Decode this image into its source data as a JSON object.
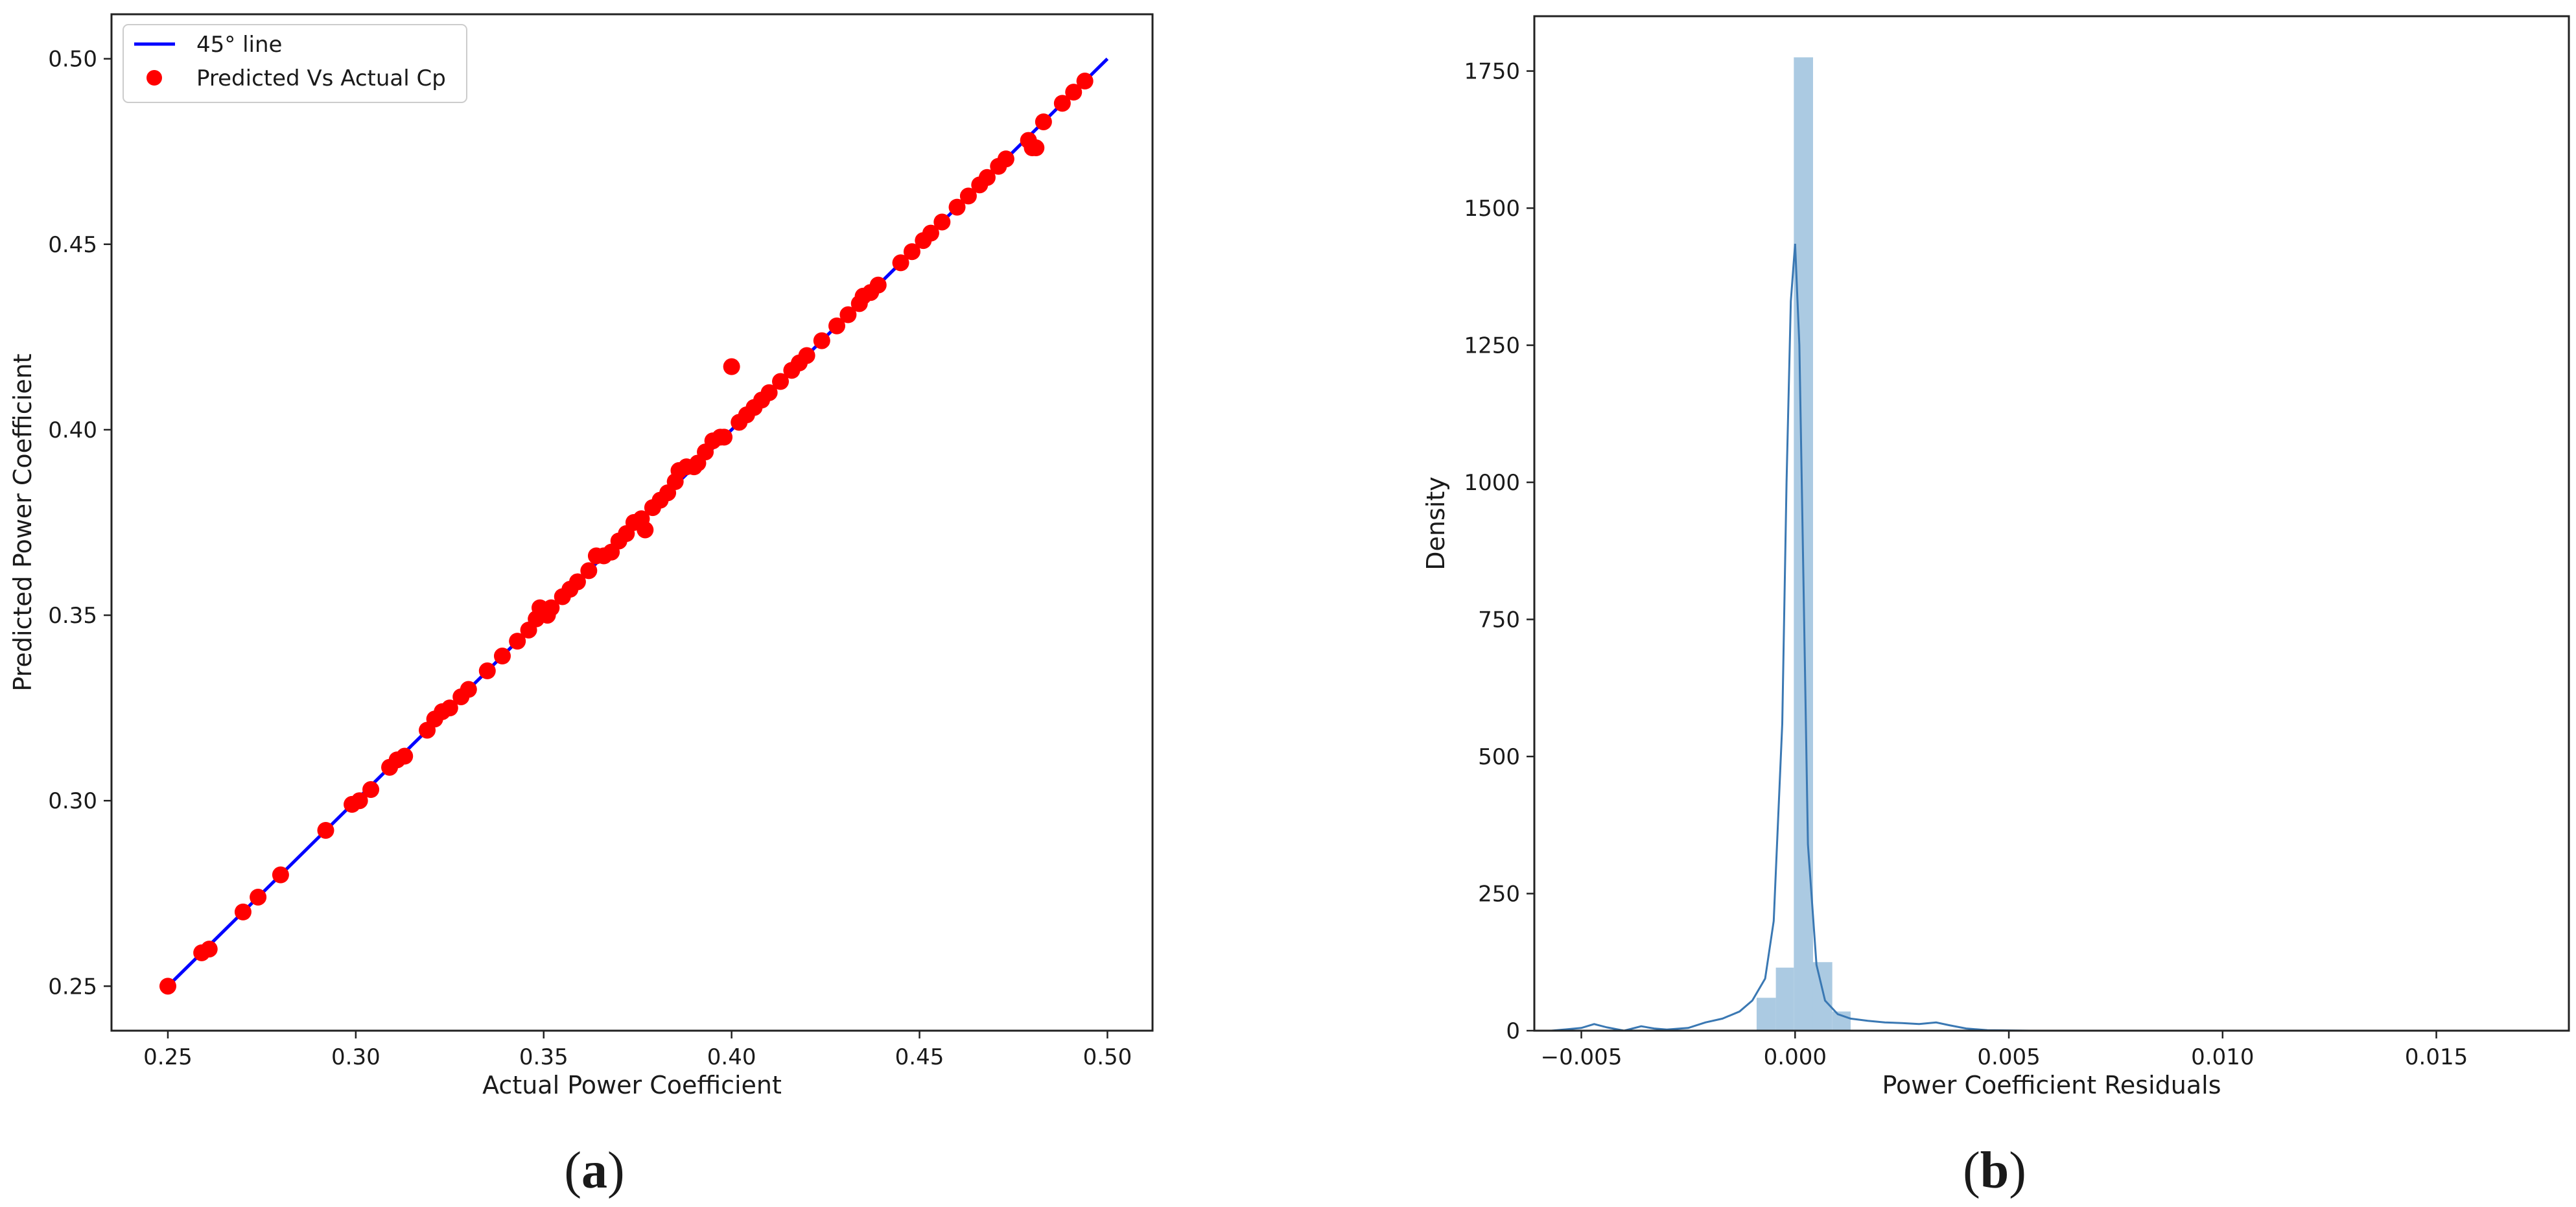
{
  "panels": {
    "a": {
      "label_open": "(",
      "letter": "a",
      "label_close": ")"
    },
    "b": {
      "label_open": "(",
      "letter": "b",
      "label_close": ")"
    }
  },
  "chart_data": [
    {
      "type": "scatter",
      "xlabel": "Actual Power Coefficient",
      "ylabel": "Predicted Power Coefficient",
      "xlim": [
        0.235,
        0.512
      ],
      "ylim": [
        0.238,
        0.512
      ],
      "xticks": [
        "0.25",
        "0.30",
        "0.35",
        "0.40",
        "0.45",
        "0.50"
      ],
      "yticks": [
        "0.25",
        "0.30",
        "0.35",
        "0.40",
        "0.45",
        "0.50"
      ],
      "legend_position": "top-left",
      "colors": {
        "line": "#0000ff",
        "points": "#ff0000"
      },
      "series": [
        {
          "name": "45° line",
          "kind": "line",
          "x": [
            0.25,
            0.5
          ],
          "y": [
            0.25,
            0.5
          ]
        },
        {
          "name": "Predicted Vs Actual Cp",
          "kind": "scatter",
          "x": [
            0.25,
            0.259,
            0.261,
            0.27,
            0.274,
            0.28,
            0.292,
            0.299,
            0.301,
            0.304,
            0.309,
            0.311,
            0.313,
            0.319,
            0.321,
            0.323,
            0.325,
            0.328,
            0.33,
            0.335,
            0.339,
            0.343,
            0.346,
            0.348,
            0.349,
            0.351,
            0.352,
            0.355,
            0.357,
            0.359,
            0.362,
            0.364,
            0.366,
            0.368,
            0.37,
            0.372,
            0.374,
            0.376,
            0.377,
            0.379,
            0.381,
            0.383,
            0.385,
            0.386,
            0.388,
            0.39,
            0.391,
            0.393,
            0.395,
            0.397,
            0.398,
            0.4,
            0.402,
            0.404,
            0.406,
            0.408,
            0.41,
            0.413,
            0.416,
            0.418,
            0.42,
            0.424,
            0.428,
            0.431,
            0.434,
            0.435,
            0.437,
            0.439,
            0.445,
            0.448,
            0.451,
            0.453,
            0.456,
            0.46,
            0.463,
            0.466,
            0.468,
            0.471,
            0.473,
            0.479,
            0.48,
            0.481,
            0.483,
            0.488,
            0.491,
            0.494
          ],
          "y": [
            0.25,
            0.259,
            0.26,
            0.27,
            0.274,
            0.28,
            0.292,
            0.299,
            0.3,
            0.303,
            0.309,
            0.311,
            0.312,
            0.319,
            0.322,
            0.324,
            0.325,
            0.328,
            0.33,
            0.335,
            0.339,
            0.343,
            0.346,
            0.349,
            0.352,
            0.35,
            0.352,
            0.355,
            0.357,
            0.359,
            0.362,
            0.366,
            0.366,
            0.367,
            0.37,
            0.372,
            0.375,
            0.376,
            0.373,
            0.379,
            0.381,
            0.383,
            0.386,
            0.389,
            0.39,
            0.39,
            0.391,
            0.394,
            0.397,
            0.398,
            0.398,
            0.417,
            0.402,
            0.404,
            0.406,
            0.408,
            0.41,
            0.413,
            0.416,
            0.418,
            0.42,
            0.424,
            0.428,
            0.431,
            0.434,
            0.436,
            0.437,
            0.439,
            0.445,
            0.448,
            0.451,
            0.453,
            0.456,
            0.46,
            0.463,
            0.466,
            0.468,
            0.471,
            0.473,
            0.478,
            0.476,
            0.476,
            0.483,
            0.488,
            0.491,
            0.494
          ]
        }
      ]
    },
    {
      "type": "histogram",
      "xlabel": "Power Coefficient Residuals",
      "ylabel": "Density",
      "xlim": [
        -0.0061,
        0.0181
      ],
      "ylim": [
        0,
        1850
      ],
      "xticks": [
        "−0.005",
        "0.000",
        "0.005",
        "0.010",
        "0.015"
      ],
      "yticks": [
        "0",
        "250",
        "500",
        "750",
        "1000",
        "1250",
        "1500",
        "1750"
      ],
      "colors": {
        "bars": "#a6c7e0",
        "kde": "#3a78b3"
      },
      "bins": [
        {
          "x0": -0.0009,
          "x1": -0.00045,
          "value": 60
        },
        {
          "x0": -0.00045,
          "x1": -3e-05,
          "value": 115
        },
        {
          "x0": -3e-05,
          "x1": 0.00042,
          "value": 1775
        },
        {
          "x0": 0.00042,
          "x1": 0.00087,
          "value": 125
        },
        {
          "x0": 0.00087,
          "x1": 0.0013,
          "value": 35
        }
      ],
      "kde": {
        "x": [
          -0.0057,
          -0.005,
          -0.0047,
          -0.0044,
          -0.004,
          -0.0036,
          -0.0033,
          -0.003,
          -0.0025,
          -0.0021,
          -0.0017,
          -0.0013,
          -0.001,
          -0.0007,
          -0.0005,
          -0.0003,
          -0.0002,
          -0.0001,
          0.0,
          0.0001,
          0.0002,
          0.0003,
          0.0005,
          0.0007,
          0.001,
          0.0013,
          0.0017,
          0.0021,
          0.0025,
          0.0029,
          0.0033,
          0.0036,
          0.004,
          0.0045,
          0.0055,
          0.007,
          0.01,
          0.013,
          0.016,
          0.0172
        ],
        "y": [
          0,
          5,
          12,
          6,
          0,
          8,
          4,
          2,
          5,
          15,
          22,
          35,
          55,
          95,
          200,
          560,
          1000,
          1330,
          1435,
          1250,
          800,
          340,
          120,
          55,
          30,
          22,
          18,
          15,
          14,
          12,
          15,
          10,
          4,
          1,
          0,
          0,
          0,
          0,
          0,
          0
        ]
      }
    }
  ]
}
